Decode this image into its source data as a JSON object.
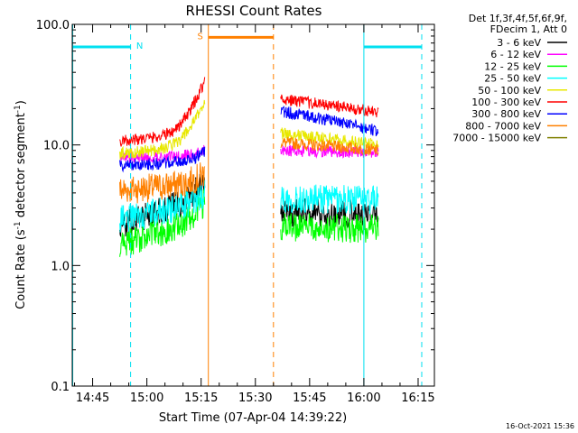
{
  "chart_data": {
    "type": "line",
    "title": "RHESSI Count Rates",
    "xlabel": "Start Time (07-Apr-04 14:39:22)",
    "ylabel_parts": [
      "Count Rate (s",
      "-1",
      " detector segment",
      "-1",
      ")"
    ],
    "y_scale": "log",
    "ylim": [
      0.1,
      100.0
    ],
    "y_ticks": [
      {
        "value": 0.1,
        "label": "0.1"
      },
      {
        "value": 1.0,
        "label": "1.0"
      },
      {
        "value": 10.0,
        "label": "10.0"
      },
      {
        "value": 100.0,
        "label": "100.0"
      }
    ],
    "xlim": [
      "14:39:22",
      "16:19:30"
    ],
    "x_ticks": [
      "14:45",
      "15:00",
      "15:15",
      "15:30",
      "15:45",
      "16:00",
      "16:15"
    ],
    "grid": false,
    "legend_position": "outside-right",
    "legend_header": [
      "Det 1f,3f,4f,5f,6f,9f,",
      "FDecim 1, Att 0"
    ],
    "segments": [
      [
        "14:52:30",
        "15:16:00"
      ],
      [
        "15:37:00",
        "16:04:00"
      ]
    ],
    "series": [
      {
        "name": "3 - 6 keV",
        "color": "#000000",
        "start": [
          2.2,
          3.4
        ],
        "end": [
          2.5,
          4.2
        ],
        "after": [
          2.8,
          2.6
        ]
      },
      {
        "name": "6 - 12 keV",
        "color": "#ff00ff",
        "start": [
          7.8,
          8.0
        ],
        "end": [
          8.0,
          9.0
        ],
        "after": [
          9.0,
          8.7
        ]
      },
      {
        "name": "12 - 25 keV",
        "color": "#00ff00",
        "start": [
          1.5,
          2.3
        ],
        "end": [
          2.1,
          3.2
        ],
        "after": [
          2.1,
          2.0
        ]
      },
      {
        "name": "25 - 50 keV",
        "color": "#00ffff",
        "start": [
          2.4,
          3.2
        ],
        "end": [
          3.4,
          4.2
        ],
        "after": [
          3.6,
          3.5
        ]
      },
      {
        "name": "50 - 100 keV",
        "color": "#e8e800",
        "start": [
          8.5,
          9.8
        ],
        "end": [
          10.5,
          24.0
        ],
        "after": [
          12.5,
          10.0
        ]
      },
      {
        "name": "100 - 300 keV",
        "color": "#ff0000",
        "start": [
          10.8,
          12.5
        ],
        "end": [
          14.0,
          36.0
        ],
        "after": [
          24.0,
          18.5
        ]
      },
      {
        "name": "300 - 800 keV",
        "color": "#0000ff",
        "start": [
          6.8,
          7.2
        ],
        "end": [
          7.0,
          8.5
        ],
        "after": [
          19.0,
          13.0
        ]
      },
      {
        "name": "800 - 7000 keV",
        "color": "#ff8000",
        "start": [
          4.2,
          4.8
        ],
        "end": [
          4.5,
          5.5
        ],
        "after": [
          10.5,
          9.0
        ]
      },
      {
        "name": "7000 - 15000 keV",
        "color": "#808000",
        "start": [
          0,
          0
        ],
        "end": [
          0,
          0
        ],
        "after": [
          0,
          0
        ]
      }
    ],
    "annotations": {
      "night_bars": [
        {
          "label": "N",
          "start": "14:39:30",
          "end": "14:55:30",
          "y": 65.0
        },
        {
          "label": "",
          "start": "16:00:00",
          "end": "16:16:00",
          "y": 65.0
        }
      ],
      "saa_bar": {
        "label": "S",
        "start": "15:17:00",
        "end": "15:35:00",
        "y": 78.0
      },
      "cyan_solid": [
        "14:39:30",
        "16:00:00"
      ],
      "cyan_dashed": [
        "14:55:30",
        "16:16:00"
      ],
      "orange_solid": [
        "15:17:00"
      ],
      "orange_dashed": [
        "15:35:00"
      ]
    }
  },
  "stamp": "16-Oct-2021 15:36"
}
